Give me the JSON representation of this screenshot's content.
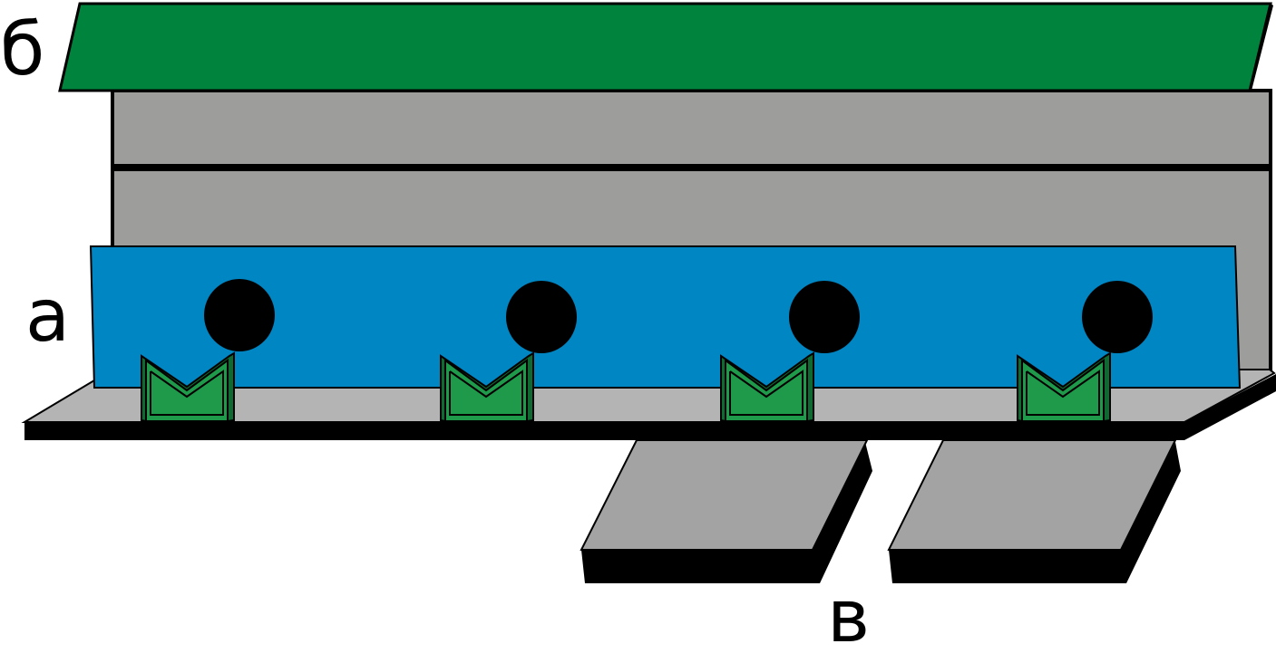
{
  "labels": {
    "roof": "б",
    "panel": "а",
    "steps": "в"
  },
  "colors": {
    "roof": "#00843d",
    "wall": "#9d9d9c",
    "panel": "#0086c3",
    "floor": "#b4b4b4",
    "step": "#a3a3a3",
    "holder": "#1f9a4b",
    "outline": "#000000"
  },
  "items": {
    "holes": 4,
    "holders": 4,
    "steps": 2
  }
}
